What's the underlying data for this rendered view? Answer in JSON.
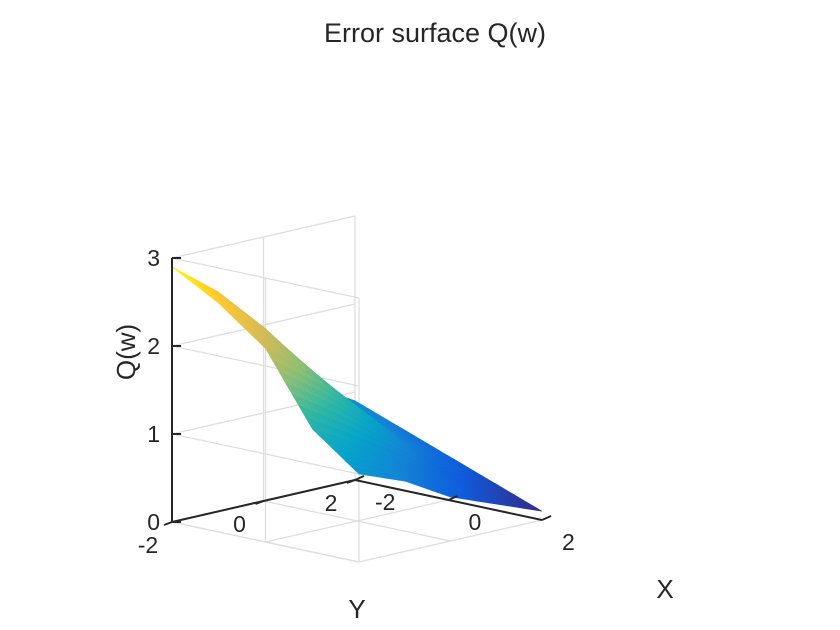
{
  "chart_data": {
    "type": "surface",
    "title": "Error surface Q(w)",
    "xlabel": "X",
    "ylabel": "Y",
    "zlabel": "Q(w)",
    "xlim": [
      -2,
      2
    ],
    "ylim": [
      -2,
      2
    ],
    "zlim": [
      0,
      3
    ],
    "x_ticks": [
      "-2",
      "0",
      "2"
    ],
    "y_ticks": [
      "-2",
      "0",
      "2"
    ],
    "z_ticks": [
      "0",
      "1",
      "2",
      "3"
    ],
    "grid": true,
    "colormap": "parula",
    "colors": [
      "#352a87",
      "#0f5cdd",
      "#1481d6",
      "#06a4ca",
      "#2eb7a4",
      "#87bf77",
      "#d1bb59",
      "#fec832",
      "#f9fb0e"
    ],
    "surface_samples": {
      "x": [
        -2,
        -1,
        0,
        1,
        2
      ],
      "y": [
        -2,
        -1,
        0,
        1,
        2
      ],
      "z": [
        [
          2.9,
          2.5,
          1.9,
          1.2,
          0.9
        ],
        [
          2.6,
          2.2,
          1.6,
          1.0,
          0.7
        ],
        [
          2.2,
          1.8,
          1.3,
          0.8,
          0.5
        ],
        [
          1.4,
          1.1,
          0.8,
          0.5,
          0.3
        ],
        [
          1.0,
          0.8,
          0.5,
          0.3,
          0.1
        ]
      ]
    }
  }
}
